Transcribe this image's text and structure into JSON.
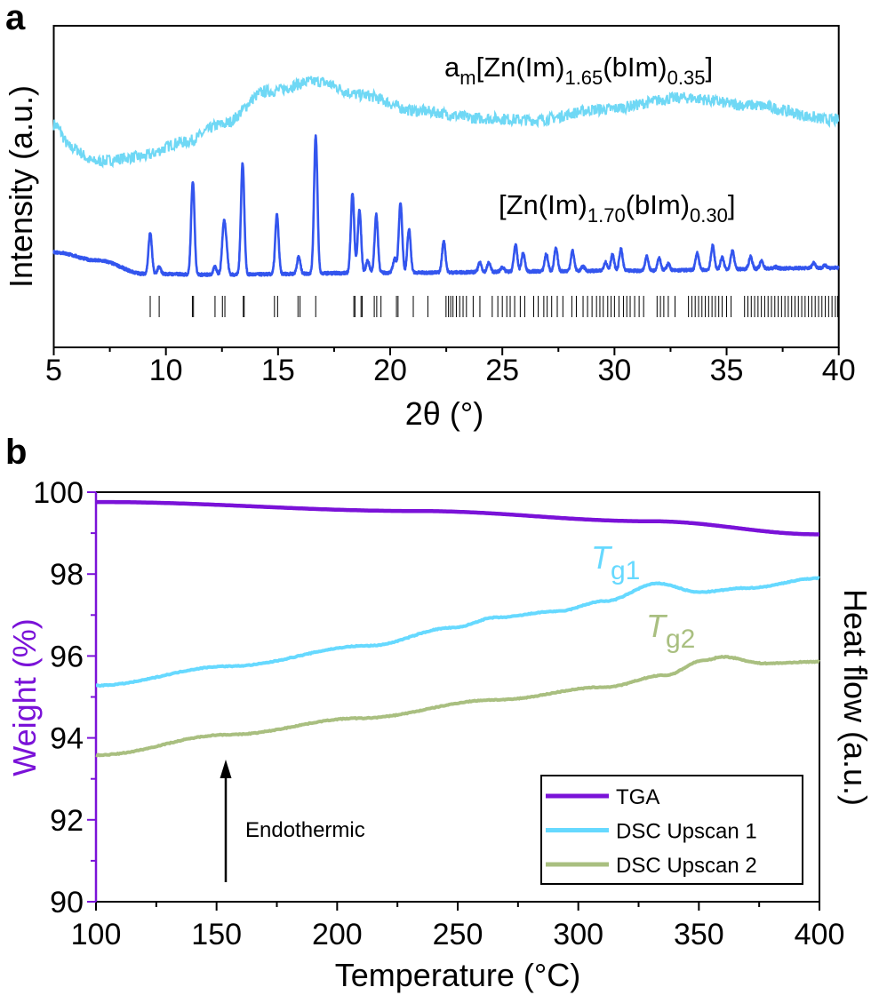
{
  "colors": {
    "amorphous": "#6fd8f5",
    "crystalline": "#3355ee",
    "reference": "#000000",
    "tga": "#7a12d8",
    "dsc1": "#66d9ff",
    "dsc2": "#a9bf80",
    "weight_axis": "#7a12d8"
  },
  "chart_data": [
    {
      "panel_label": "a",
      "type": "line",
      "xlabel": "2θ (°)",
      "ylabel": "Intensity (a.u.)",
      "xlim": [
        5,
        40
      ],
      "xticks": [
        "5",
        "10",
        "15",
        "20",
        "25",
        "30",
        "35",
        "40"
      ],
      "ylim": [
        0,
        100
      ],
      "yticks_shown": false,
      "grid": false,
      "series": [
        {
          "label_parts": [
            "a",
            "m",
            "[Zn(Im)",
            "1.65",
            "(bIm)",
            "0.35",
            "]"
          ],
          "color_key": "amorphous",
          "points": [
            [
              5.0,
              69.3
            ],
            [
              5.8,
              62.0
            ],
            [
              6.8,
              57.8
            ],
            [
              8.8,
              59.2
            ],
            [
              10.8,
              63.8
            ],
            [
              12.5,
              69.3
            ],
            [
              14.5,
              79.6
            ],
            [
              16.7,
              82.7
            ],
            [
              18.7,
              78.5
            ],
            [
              21.2,
              73.5
            ],
            [
              24.2,
              71.2
            ],
            [
              26.4,
              70.7
            ],
            [
              29.4,
              74.0
            ],
            [
              33.1,
              77.6
            ],
            [
              36.0,
              75.3
            ],
            [
              39.9,
              70.7
            ]
          ]
        },
        {
          "label_parts": [
            "[Zn(Im)",
            "1.70",
            "(bIm)",
            "0.30",
            "]"
          ],
          "color_key": "crystalline",
          "baseline": [
            [
              5,
              29.6
            ],
            [
              7,
              27.0
            ],
            [
              9,
              22.9
            ],
            [
              12,
              22.6
            ],
            [
              20,
              23.2
            ],
            [
              30,
              23.8
            ],
            [
              40,
              24.7
            ]
          ],
          "peaks": [
            [
              9.3,
              35.6
            ],
            [
              9.7,
              25.0
            ],
            [
              11.2,
              51.7
            ],
            [
              12.19,
              25.0
            ],
            [
              12.57,
              35.7
            ],
            [
              12.68,
              31.0
            ],
            [
              13.42,
              57.4
            ],
            [
              14.95,
              41.2
            ],
            [
              15.92,
              28.2
            ],
            [
              16.68,
              65.8
            ],
            [
              18.32,
              48.0
            ],
            [
              18.63,
              42.6
            ],
            [
              19.0,
              27.0
            ],
            [
              19.38,
              41.2
            ],
            [
              20.2,
              27.5
            ],
            [
              20.46,
              45.2
            ],
            [
              20.84,
              36.7
            ],
            [
              22.39,
              33.1
            ],
            [
              24.0,
              26.3
            ],
            [
              24.4,
              26.3
            ],
            [
              25.0,
              25.0
            ],
            [
              25.59,
              31.9
            ],
            [
              25.93,
              29.3
            ],
            [
              26.96,
              29.0
            ],
            [
              27.39,
              30.7
            ],
            [
              28.13,
              30.0
            ],
            [
              28.6,
              25.2
            ],
            [
              29.6,
              26.5
            ],
            [
              29.91,
              28.8
            ],
            [
              30.29,
              30.5
            ],
            [
              31.44,
              28.2
            ],
            [
              31.99,
              27.9
            ],
            [
              32.4,
              26.0
            ],
            [
              33.69,
              29.3
            ],
            [
              34.38,
              31.6
            ],
            [
              34.8,
              28.0
            ],
            [
              35.26,
              30.0
            ],
            [
              36.07,
              28.2
            ],
            [
              36.56,
              26.8
            ],
            [
              37.2,
              25.0
            ],
            [
              38.89,
              26.3
            ],
            [
              39.4,
              25.5
            ]
          ]
        }
      ],
      "reference_reflections": [
        9.3,
        9.7,
        11.18,
        11.23,
        12.19,
        12.52,
        12.63,
        13.45,
        13.49,
        14.84,
        14.98,
        15.89,
        15.98,
        16.68,
        18.38,
        18.43,
        18.7,
        18.75,
        19.29,
        19.4,
        19.59,
        20.28,
        20.35,
        21.03,
        21.68,
        22.49,
        22.6,
        22.7,
        22.8,
        22.95,
        23.1,
        23.25,
        23.4,
        23.7,
        24.0,
        24.55,
        24.8,
        25.0,
        25.2,
        25.35,
        25.55,
        25.8,
        26.0,
        26.4,
        26.6,
        26.85,
        27.0,
        27.2,
        27.45,
        27.7,
        28.1,
        28.3,
        28.6,
        28.8,
        29.0,
        29.2,
        29.35,
        29.5,
        29.7,
        29.85,
        30.0,
        30.2,
        30.4,
        30.55,
        30.7,
        30.9,
        31.1,
        31.3,
        31.9,
        32.05,
        32.2,
        32.4,
        32.7,
        33.3,
        33.45,
        33.6,
        33.75,
        33.9,
        34.05,
        34.2,
        34.35,
        34.5,
        34.65,
        34.8,
        35.0,
        35.2,
        35.8,
        35.95,
        36.1,
        36.25,
        36.4,
        36.55,
        36.7,
        36.85,
        37.0,
        37.15,
        37.3,
        37.45,
        37.6,
        37.75,
        37.9,
        38.05,
        38.2,
        38.35,
        38.5,
        38.65,
        38.8,
        38.95,
        39.1,
        39.25,
        39.4,
        39.55,
        39.7,
        39.85,
        39.95
      ]
    },
    {
      "panel_label": "b",
      "type": "line",
      "xlabel": "Temperature (°C)",
      "ylabel": "Weight (%)",
      "y2label": "Heat flow (a.u.)",
      "xlim": [
        100,
        400
      ],
      "xticks": [
        "100",
        "150",
        "200",
        "250",
        "300",
        "350",
        "400"
      ],
      "ylim": [
        90,
        100
      ],
      "yticks": [
        "90",
        "92",
        "94",
        "96",
        "98",
        "100"
      ],
      "grid": false,
      "legend_position": "bottom-right",
      "series": [
        {
          "name": "TGA",
          "color_key": "tga",
          "points": [
            [
              100,
              99.76
            ],
            [
              233,
              99.54
            ],
            [
              330,
              99.29
            ],
            [
              400,
              98.97
            ]
          ]
        },
        {
          "name": "DSC Upscan 1",
          "color_key": "dsc1",
          "points": [
            [
              100,
              95.28
            ],
            [
              155,
              95.75
            ],
            [
              213,
              96.25
            ],
            [
              248,
              96.69
            ],
            [
              266,
              96.94
            ],
            [
              291,
              97.09
            ],
            [
              311,
              97.34
            ],
            [
              333,
              97.77
            ],
            [
              350,
              97.56
            ],
            [
              370,
              97.66
            ],
            [
              400,
              97.9
            ]
          ]
        },
        {
          "name": "DSC Upscan 2",
          "color_key": "dsc2",
          "points": [
            [
              100,
              93.58
            ],
            [
              155,
              94.08
            ],
            [
              209,
              94.48
            ],
            [
              266,
              94.93
            ],
            [
              311,
              95.24
            ],
            [
              336,
              95.53
            ],
            [
              352,
              95.89
            ],
            [
              360,
              95.98
            ],
            [
              377,
              95.82
            ],
            [
              400,
              95.86
            ]
          ]
        }
      ],
      "annotations": {
        "tg1": {
          "symbol": "T",
          "subscript": "g1",
          "color_key": "dsc1"
        },
        "tg2": {
          "symbol": "T",
          "subscript": "g2",
          "color_key": "dsc2"
        },
        "arrow_text": "Endothermic"
      }
    }
  ]
}
